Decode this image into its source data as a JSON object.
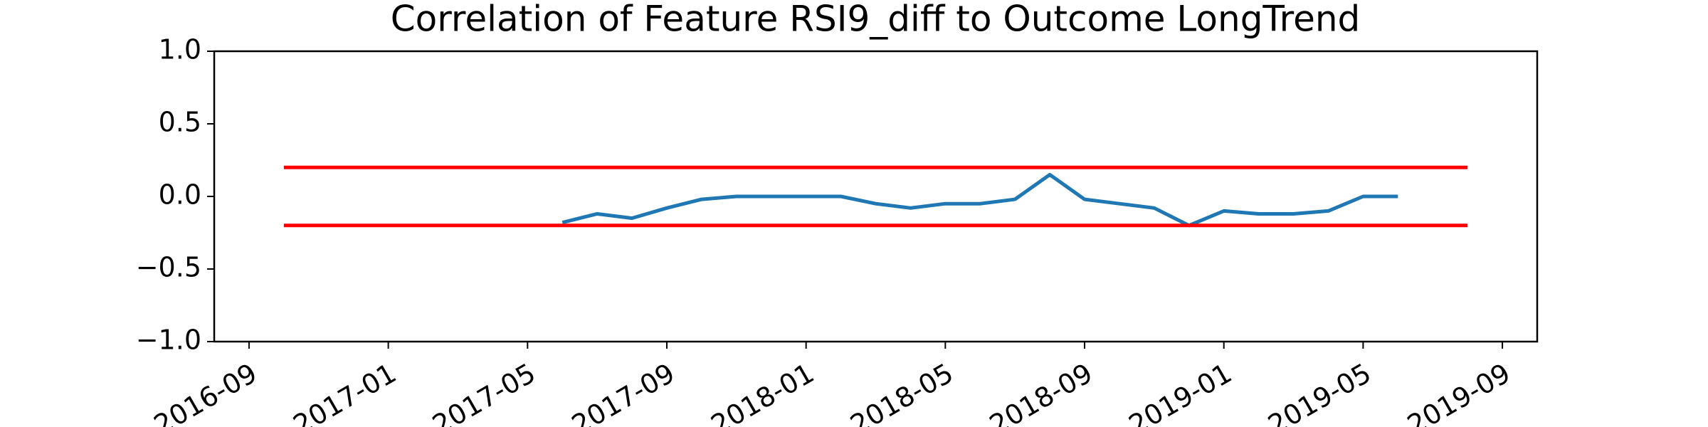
{
  "chart_data": {
    "type": "line",
    "title": "Correlation of Feature RSI9_diff to Outcome LongTrend",
    "xlim": [
      "2016-08",
      "2019-10"
    ],
    "xticks": [
      "2016-09",
      "2017-01",
      "2017-05",
      "2017-09",
      "2018-01",
      "2018-05",
      "2018-09",
      "2019-01",
      "2019-05",
      "2019-09"
    ],
    "ylim": [
      -1,
      1
    ],
    "yticks": [
      {
        "value": 1,
        "label": "1.0"
      },
      {
        "value": 0.5,
        "label": "0.5"
      },
      {
        "value": 0,
        "label": "0.0"
      },
      {
        "value": -0.5,
        "label": "−0.5"
      },
      {
        "value": -1,
        "label": "−1.0"
      }
    ],
    "grid": false,
    "series": [
      {
        "color": "#1f77b4",
        "x": [
          "2017-06",
          "2017-07",
          "2017-08",
          "2017-09",
          "2017-10",
          "2017-11",
          "2017-12",
          "2018-01",
          "2018-02",
          "2018-03",
          "2018-04",
          "2018-05",
          "2018-06",
          "2018-07",
          "2018-08",
          "2018-09",
          "2018-10",
          "2018-11",
          "2018-12",
          "2019-01",
          "2019-02",
          "2019-03",
          "2019-04",
          "2019-05",
          "2019-06"
        ],
        "values": [
          -0.18,
          -0.12,
          -0.15,
          -0.08,
          -0.02,
          0,
          0,
          0,
          0,
          -0.05,
          -0.08,
          -0.05,
          -0.05,
          -0.02,
          0.15,
          -0.02,
          -0.05,
          -0.08,
          -0.2,
          -0.1,
          -0.12,
          -0.12,
          -0.1,
          0,
          0
        ]
      },
      {
        "color": "#ff0000",
        "x": [
          "2016-10",
          "2019-08"
        ],
        "values": [
          0.2,
          0.2
        ]
      },
      {
        "color": "#ff0000",
        "x": [
          "2016-10",
          "2019-08"
        ],
        "values": [
          -0.2,
          -0.2
        ]
      }
    ]
  }
}
